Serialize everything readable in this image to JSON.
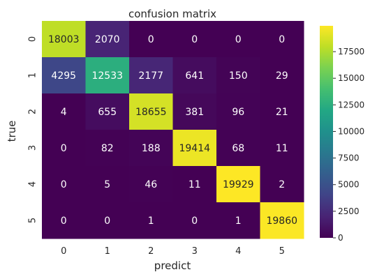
{
  "chart_data": {
    "type": "heatmap",
    "title": "confusion matrix",
    "xlabel": "predict",
    "ylabel": "true",
    "x_categories": [
      "0",
      "1",
      "2",
      "3",
      "4",
      "5"
    ],
    "y_categories": [
      "0",
      "1",
      "2",
      "3",
      "4",
      "5"
    ],
    "values": [
      [
        18003,
        2070,
        0,
        0,
        0,
        0
      ],
      [
        4295,
        12533,
        2177,
        641,
        150,
        29
      ],
      [
        4,
        655,
        18655,
        381,
        96,
        21
      ],
      [
        0,
        82,
        188,
        19414,
        68,
        11
      ],
      [
        0,
        5,
        46,
        11,
        19929,
        2
      ],
      [
        0,
        0,
        1,
        0,
        1,
        19860
      ]
    ],
    "colormap": "viridis",
    "vmin": 0,
    "vmax": 19929,
    "colorbar_ticks": [
      0,
      2500,
      5000,
      7500,
      10000,
      12500,
      15000,
      17500
    ],
    "annotated": true
  }
}
